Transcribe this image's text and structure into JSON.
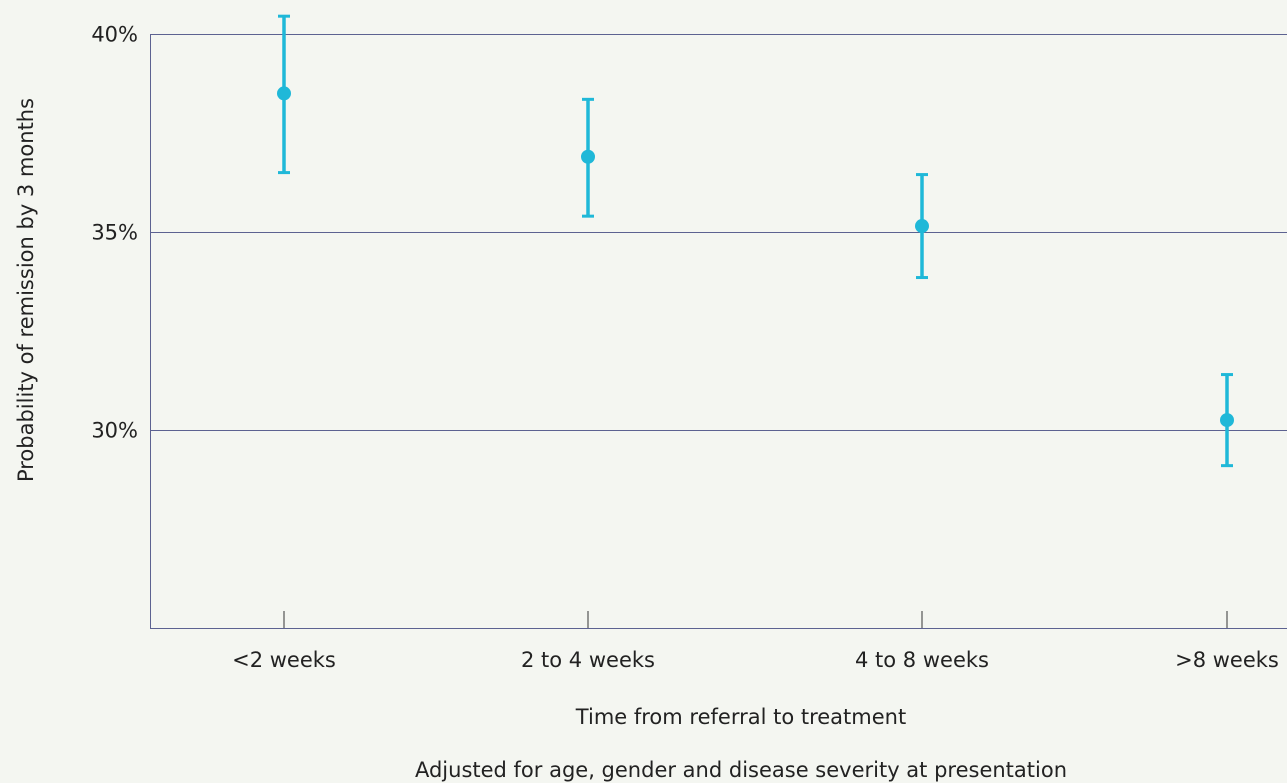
{
  "chart_data": {
    "type": "scatter",
    "title": "",
    "categories": [
      "<2 weeks",
      "2 to 4 weeks",
      "4 to 8 weeks",
      ">8 weeks"
    ],
    "series": [
      {
        "values": [
          38.5,
          36.9,
          35.15,
          30.25
        ],
        "ci_low": [
          36.5,
          35.4,
          33.85,
          29.1
        ],
        "ci_high": [
          40.45,
          38.35,
          36.45,
          31.4
        ]
      }
    ],
    "xlabel": "Time from referral to treatment",
    "ylabel": "Probability of remission by 3 months",
    "ylim": [
      25,
      40
    ],
    "yticks": [
      30,
      35,
      40
    ],
    "ytick_labels": [
      "30%",
      "35%",
      "40%"
    ],
    "grid": true,
    "note": "Adjusted for age, gender and disease severity at presentation",
    "color": "#1fb8d8"
  }
}
